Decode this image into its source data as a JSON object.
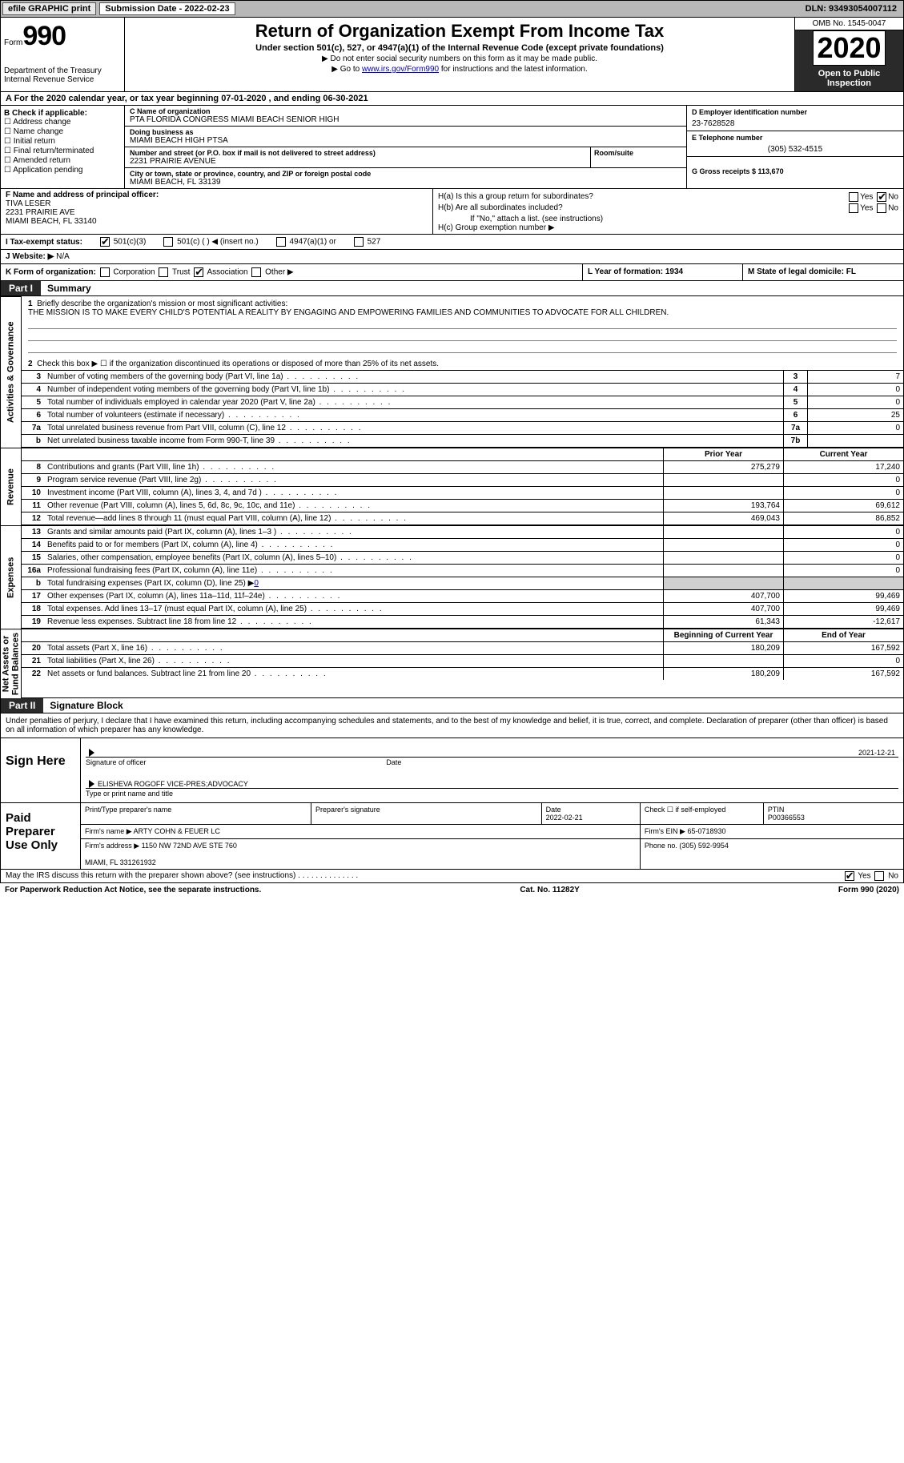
{
  "topbar": {
    "efile": "efile GRAPHIC print",
    "subdate_label": "Submission Date - 2022-02-23",
    "dln": "DLN: 93493054007112"
  },
  "header": {
    "form_word": "Form",
    "form_no": "990",
    "dept": "Department of the Treasury\nInternal Revenue Service",
    "title": "Return of Organization Exempt From Income Tax",
    "sub1": "Under section 501(c), 527, or 4947(a)(1) of the Internal Revenue Code (except private foundations)",
    "sub2a": "▶ Do not enter social security numbers on this form as it may be made public.",
    "sub2b_pre": "▶ Go to ",
    "sub2b_link": "www.irs.gov/Form990",
    "sub2b_post": " for instructions and the latest information.",
    "omb": "OMB No. 1545-0047",
    "year": "2020",
    "otp": "Open to Public Inspection"
  },
  "rowA": "A For the 2020 calendar year, or tax year beginning 07-01-2020    , and ending 06-30-2021",
  "colB": {
    "label": "B Check if applicable:",
    "items": [
      "Address change",
      "Name change",
      "Initial return",
      "Final return/terminated",
      "Amended return",
      "Application pending"
    ]
  },
  "colC": {
    "name_label": "C Name of organization",
    "name": "PTA FLORIDA CONGRESS MIAMI BEACH SENIOR HIGH",
    "dba_label": "Doing business as",
    "dba": "MIAMI BEACH HIGH PTSA",
    "addr_label": "Number and street (or P.O. box if mail is not delivered to street address)",
    "room_label": "Room/suite",
    "addr": "2231 PRAIRIE AVENUE",
    "city_label": "City or town, state or province, country, and ZIP or foreign postal code",
    "city": "MIAMI BEACH, FL  33139"
  },
  "colDE": {
    "d_label": "D Employer identification number",
    "d_val": "23-7628528",
    "e_label": "E Telephone number",
    "e_val": "(305) 532-4515",
    "g_label": "G Gross receipts $ 113,670"
  },
  "rowF": {
    "f_label": "F  Name and address of principal officer:",
    "f_name": "TIVA LESER",
    "f_addr1": "2231 PRAIRIE AVE",
    "f_addr2": "MIAMI BEACH, FL  33140",
    "ha": "H(a)  Is this a group return for subordinates?",
    "hb": "H(b)  Are all subordinates included?",
    "hb_note": "If \"No,\" attach a list. (see instructions)",
    "hc": "H(c)  Group exemption number ▶",
    "yes": "Yes",
    "no": "No"
  },
  "rowI": {
    "label": "I    Tax-exempt status:",
    "o1": "501(c)(3)",
    "o2": "501(c) (   ) ◀ (insert no.)",
    "o3": "4947(a)(1) or",
    "o4": "527"
  },
  "rowJ": {
    "label": "J    Website: ▶",
    "val": "N/A"
  },
  "rowK": {
    "k": "K Form of organization:",
    "corp": "Corporation",
    "trust": "Trust",
    "assoc": "Association",
    "other": "Other ▶",
    "l": "L Year of formation: 1934",
    "m": "M State of legal domicile: FL"
  },
  "part1": {
    "box": "Part I",
    "title": "Summary"
  },
  "vlabels": {
    "gov": "Activities & Governance",
    "rev": "Revenue",
    "exp": "Expenses",
    "net": "Net Assets or\nFund Balances"
  },
  "mission": {
    "num": "1",
    "label": "Briefly describe the organization's mission or most significant activities:",
    "text": "THE MISSION IS TO MAKE EVERY CHILD'S POTENTIAL A REALITY BY ENGAGING AND EMPOWERING FAMILIES AND COMMUNITIES TO ADVOCATE FOR ALL CHILDREN."
  },
  "line2": {
    "num": "2",
    "text": "Check this box ▶ ☐  if the organization discontinued its operations or disposed of more than 25% of its net assets."
  },
  "gov_lines": [
    {
      "n": "3",
      "t": "Number of voting members of the governing body (Part VI, line 1a)",
      "b": "3",
      "v": "7"
    },
    {
      "n": "4",
      "t": "Number of independent voting members of the governing body (Part VI, line 1b)",
      "b": "4",
      "v": "0"
    },
    {
      "n": "5",
      "t": "Total number of individuals employed in calendar year 2020 (Part V, line 2a)",
      "b": "5",
      "v": "0"
    },
    {
      "n": "6",
      "t": "Total number of volunteers (estimate if necessary)",
      "b": "6",
      "v": "25"
    },
    {
      "n": "7a",
      "t": "Total unrelated business revenue from Part VIII, column (C), line 12",
      "b": "7a",
      "v": "0"
    },
    {
      "n": "b",
      "t": "Net unrelated business taxable income from Form 990-T, line 39",
      "b": "7b",
      "v": ""
    }
  ],
  "colhdr": {
    "py": "Prior Year",
    "cy": "Current Year"
  },
  "rev_lines": [
    {
      "n": "8",
      "t": "Contributions and grants (Part VIII, line 1h)",
      "py": "275,279",
      "cy": "17,240"
    },
    {
      "n": "9",
      "t": "Program service revenue (Part VIII, line 2g)",
      "py": "",
      "cy": "0"
    },
    {
      "n": "10",
      "t": "Investment income (Part VIII, column (A), lines 3, 4, and 7d )",
      "py": "",
      "cy": "0"
    },
    {
      "n": "11",
      "t": "Other revenue (Part VIII, column (A), lines 5, 6d, 8c, 9c, 10c, and 11e)",
      "py": "193,764",
      "cy": "69,612"
    },
    {
      "n": "12",
      "t": "Total revenue—add lines 8 through 11 (must equal Part VIII, column (A), line 12)",
      "py": "469,043",
      "cy": "86,852"
    }
  ],
  "exp_lines": [
    {
      "n": "13",
      "t": "Grants and similar amounts paid (Part IX, column (A), lines 1–3 )",
      "py": "",
      "cy": "0"
    },
    {
      "n": "14",
      "t": "Benefits paid to or for members (Part IX, column (A), line 4)",
      "py": "",
      "cy": "0"
    },
    {
      "n": "15",
      "t": "Salaries, other compensation, employee benefits (Part IX, column (A), lines 5–10)",
      "py": "",
      "cy": "0"
    },
    {
      "n": "16a",
      "t": "Professional fundraising fees (Part IX, column (A), line 11e)",
      "py": "",
      "cy": "0"
    }
  ],
  "line16b": {
    "n": "b",
    "t": "Total fundraising expenses (Part IX, column (D), line 25) ▶",
    "v": "0"
  },
  "exp_lines2": [
    {
      "n": "17",
      "t": "Other expenses (Part IX, column (A), lines 11a–11d, 11f–24e)",
      "py": "407,700",
      "cy": "99,469"
    },
    {
      "n": "18",
      "t": "Total expenses. Add lines 13–17 (must equal Part IX, column (A), line 25)",
      "py": "407,700",
      "cy": "99,469"
    },
    {
      "n": "19",
      "t": "Revenue less expenses. Subtract line 18 from line 12",
      "py": "61,343",
      "cy": "-12,617"
    }
  ],
  "colhdr2": {
    "py": "Beginning of Current Year",
    "cy": "End of Year"
  },
  "net_lines": [
    {
      "n": "20",
      "t": "Total assets (Part X, line 16)",
      "py": "180,209",
      "cy": "167,592"
    },
    {
      "n": "21",
      "t": "Total liabilities (Part X, line 26)",
      "py": "",
      "cy": "0"
    },
    {
      "n": "22",
      "t": "Net assets or fund balances. Subtract line 21 from line 20",
      "py": "180,209",
      "cy": "167,592"
    }
  ],
  "part2": {
    "box": "Part II",
    "title": "Signature Block"
  },
  "sig_intro": "Under penalties of perjury, I declare that I have examined this return, including accompanying schedules and statements, and to the best of my knowledge and belief, it is true, correct, and complete. Declaration of preparer (other than officer) is based on all information of which preparer has any knowledge.",
  "sign": {
    "label": "Sign Here",
    "sig_of": "Signature of officer",
    "date_lab": "Date",
    "date": "2021-12-21",
    "name": "ELISHEVA ROGOFF  VICE-PRES;ADVOCACY",
    "name_lab": "Type or print name and title"
  },
  "prep": {
    "label": "Paid Preparer Use Only",
    "h1": "Print/Type preparer's name",
    "h2": "Preparer's signature",
    "h3_lab": "Date",
    "h3": "2022-02-21",
    "h4": "Check ☐ if self-employed",
    "h5_lab": "PTIN",
    "h5": "P00366553",
    "firm_lab": "Firm's name    ▶",
    "firm": "ARTY COHN & FEUER LC",
    "ein_lab": "Firm's EIN ▶",
    "ein": "65-0718930",
    "faddr_lab": "Firm's address ▶",
    "faddr": "1150 NW 72ND AVE STE 760\n\nMIAMI, FL  331261932",
    "phone_lab": "Phone no.",
    "phone": "(305) 592-9954"
  },
  "discuss": {
    "q": "May the IRS discuss this return with the preparer shown above? (see instructions)",
    "yes": "Yes",
    "no": "No"
  },
  "footer": {
    "left": "For Paperwork Reduction Act Notice, see the separate instructions.",
    "mid": "Cat. No. 11282Y",
    "right": "Form 990 (2020)"
  }
}
